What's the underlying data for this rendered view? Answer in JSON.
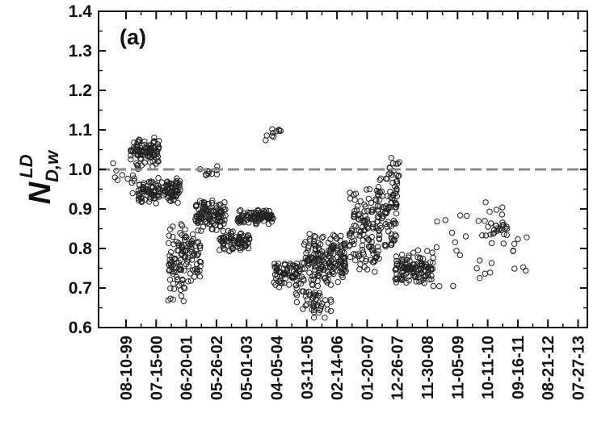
{
  "chart_data": {
    "type": "scatter",
    "panel_label": "(a)",
    "ylabel": {
      "base": "N",
      "subscript": "D,w",
      "superscript": "LD"
    },
    "ylim": [
      0.6,
      1.4
    ],
    "y_ticks": [
      0.6,
      0.7,
      0.8,
      0.9,
      1.0,
      1.1,
      1.2,
      1.3,
      1.4
    ],
    "y_tick_labels": [
      "0.6",
      "0.7",
      "0.8",
      "0.9",
      "1.0",
      "1.1",
      "1.2",
      "1.3",
      "1.4"
    ],
    "x_tick_labels": [
      "08-10-99",
      "07-15-00",
      "06-20-01",
      "05-26-02",
      "05-01-03",
      "04-05-04",
      "03-11-05",
      "02-14-06",
      "01-20-07",
      "12-26-07",
      "11-30-08",
      "11-05-09",
      "10-11-10",
      "09-16-11",
      "08-21-12",
      "07-27-13"
    ],
    "reference_line": {
      "y": 1.0,
      "style": "dashed",
      "color": "#8a8a8a"
    },
    "marker": {
      "shape": "open-circle",
      "color": "#222222"
    },
    "grid": false,
    "series": [
      {
        "clusters": [
          {
            "x": [
              -0.6,
              0.4
            ],
            "y": [
              0.92,
              1.04
            ],
            "n": 12
          },
          {
            "x": [
              0.15,
              1.1
            ],
            "y": [
              1.0,
              1.09
            ],
            "n": 95
          },
          {
            "x": [
              0.4,
              1.8
            ],
            "y": [
              0.91,
              0.98
            ],
            "n": 130
          },
          {
            "x": [
              1.4,
              2.0
            ],
            "y": [
              0.66,
              0.88
            ],
            "n": 70
          },
          {
            "x": [
              1.8,
              2.5
            ],
            "y": [
              0.7,
              0.86
            ],
            "n": 60
          },
          {
            "x": [
              2.3,
              3.3
            ],
            "y": [
              0.84,
              0.93
            ],
            "n": 110
          },
          {
            "x": [
              2.2,
              3.2
            ],
            "y": [
              0.97,
              1.01
            ],
            "n": 10
          },
          {
            "x": [
              3.1,
              4.1
            ],
            "y": [
              0.79,
              0.85
            ],
            "n": 80
          },
          {
            "x": [
              3.7,
              4.9
            ],
            "y": [
              0.86,
              0.9
            ],
            "n": 90
          },
          {
            "x": [
              4.3,
              5.3
            ],
            "y": [
              1.06,
              1.13
            ],
            "n": 10
          },
          {
            "x": [
              4.9,
              5.9
            ],
            "y": [
              0.7,
              0.77
            ],
            "n": 75
          },
          {
            "x": [
              5.6,
              6.4
            ],
            "y": [
              0.62,
              0.75
            ],
            "n": 35
          },
          {
            "x": [
              5.9,
              7.3
            ],
            "y": [
              0.7,
              0.84
            ],
            "n": 170
          },
          {
            "x": [
              6.1,
              6.9
            ],
            "y": [
              0.62,
              0.7
            ],
            "n": 20
          },
          {
            "x": [
              7.4,
              8.4
            ],
            "y": [
              0.72,
              0.97
            ],
            "n": 110
          },
          {
            "x": [
              8.3,
              9.0
            ],
            "y": [
              0.78,
              0.99
            ],
            "n": 90
          },
          {
            "x": [
              8.7,
              9.1
            ],
            "y": [
              0.94,
              1.04
            ],
            "n": 20
          },
          {
            "x": [
              8.9,
              10.2
            ],
            "y": [
              0.7,
              0.8
            ],
            "n": 120
          },
          {
            "x": [
              10.3,
              12.6
            ],
            "y": [
              0.68,
              0.95
            ],
            "n": 30
          },
          {
            "x": [
              12.0,
              12.7
            ],
            "y": [
              0.83,
              0.87
            ],
            "n": 20
          },
          {
            "x": [
              12.7,
              13.3
            ],
            "y": [
              0.73,
              0.87
            ],
            "n": 8
          }
        ]
      }
    ]
  }
}
